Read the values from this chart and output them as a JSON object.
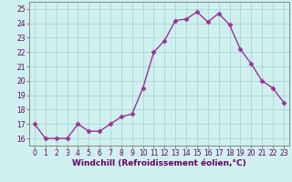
{
  "x": [
    0,
    1,
    2,
    3,
    4,
    5,
    6,
    7,
    8,
    9,
    10,
    11,
    12,
    13,
    14,
    15,
    16,
    17,
    18,
    19,
    20,
    21,
    22,
    23
  ],
  "y": [
    17,
    16,
    16,
    16,
    17,
    16.5,
    16.5,
    17,
    17.5,
    17.7,
    19.5,
    22,
    22.8,
    24.2,
    24.3,
    24.8,
    24.1,
    24.7,
    23.9,
    22.2,
    21.2,
    20.0,
    19.5,
    18.5
  ],
  "line_color": "#993399",
  "marker_color": "#993399",
  "bg_color": "#cef0ee",
  "grid_color": "#aacccc",
  "xlabel": "Windchill (Refroidissement éolien,°C)",
  "xlim": [
    -0.5,
    23.5
  ],
  "ylim": [
    15.5,
    25.5
  ],
  "yticks": [
    16,
    17,
    18,
    19,
    20,
    21,
    22,
    23,
    24,
    25
  ],
  "xticks": [
    0,
    1,
    2,
    3,
    4,
    5,
    6,
    7,
    8,
    9,
    10,
    11,
    12,
    13,
    14,
    15,
    16,
    17,
    18,
    19,
    20,
    21,
    22,
    23
  ],
  "tick_label_size": 5.5,
  "xlabel_size": 6.5,
  "marker_size": 2.5,
  "line_width": 1.0
}
